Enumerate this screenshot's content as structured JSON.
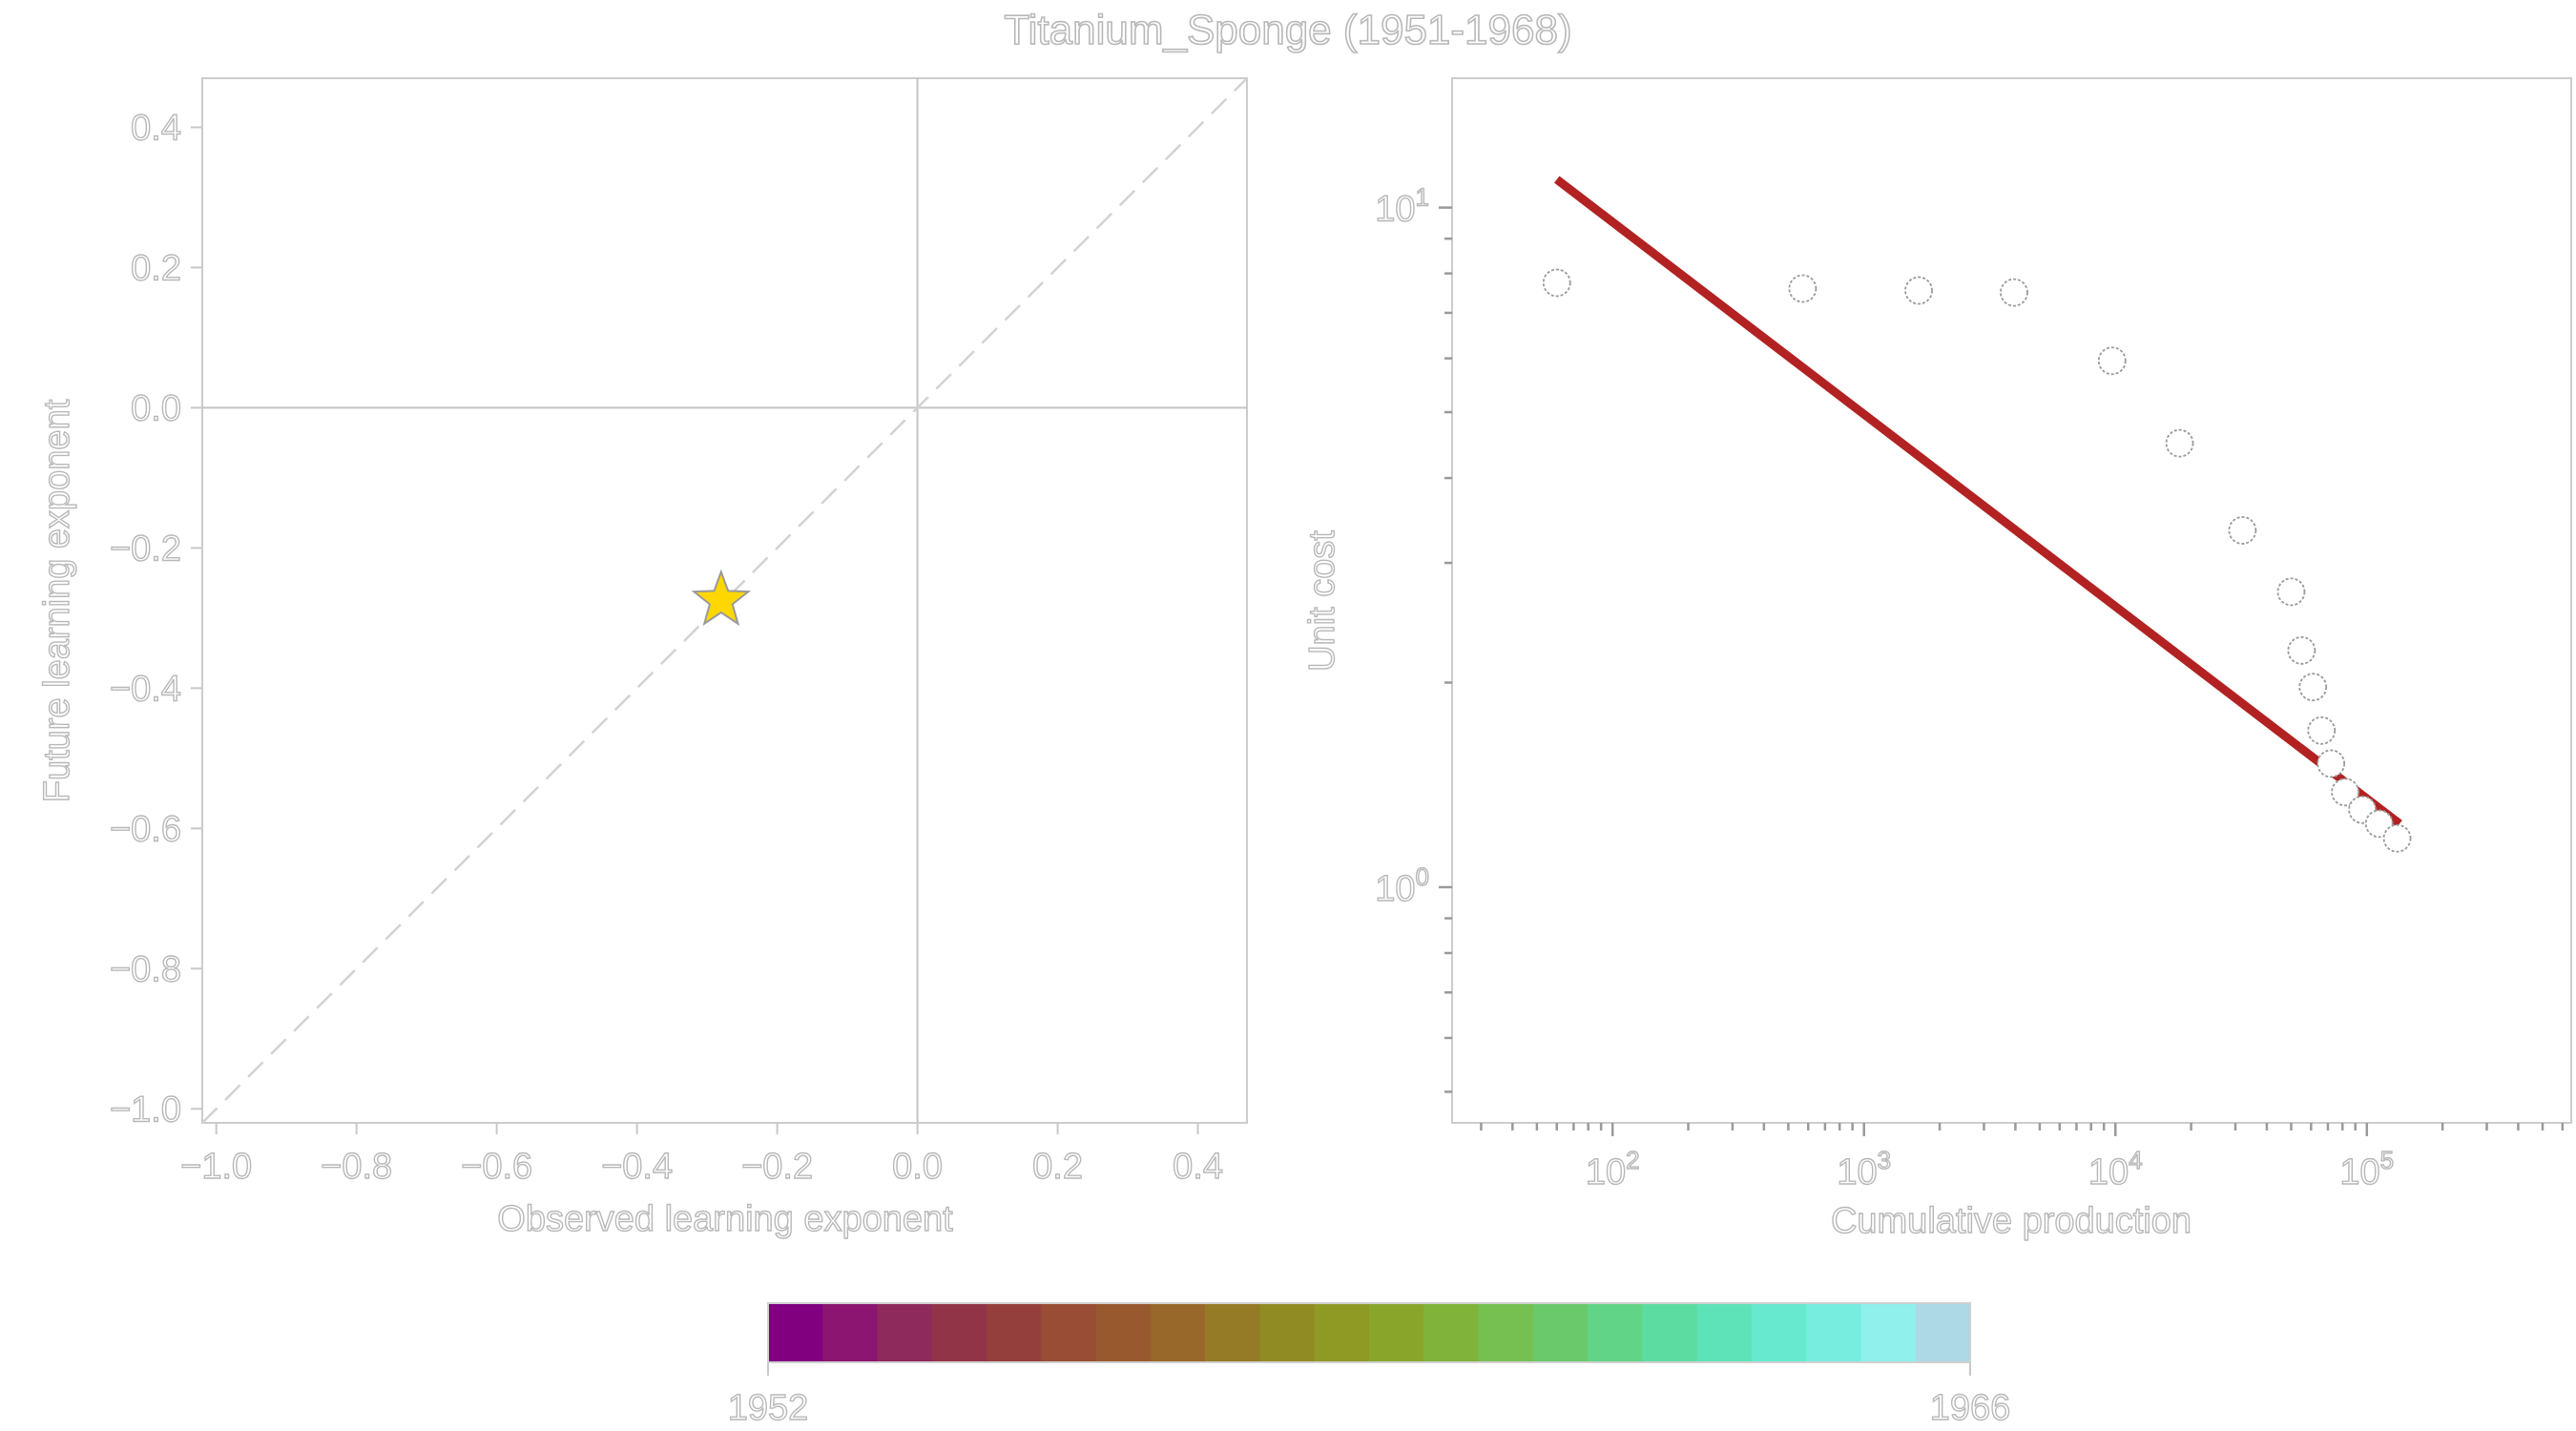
{
  "title": "Titanium_Sponge (1951-1968)",
  "chart_data": [
    {
      "type": "scatter",
      "name": "learning-exponent-comparison",
      "xlabel": "Observed learning exponent",
      "ylabel": "Future learning exponent",
      "xlim": [
        -1.02,
        0.47
      ],
      "ylim": [
        -1.02,
        0.47
      ],
      "x_ticks": [
        -1.0,
        -0.8,
        -0.6,
        -0.4,
        -0.2,
        0.0,
        0.2,
        0.4
      ],
      "x_tick_labels": [
        "−1.0",
        "−0.8",
        "−0.6",
        "−0.4",
        "−0.2",
        "0.0",
        "0.2",
        "0.4"
      ],
      "y_ticks": [
        0.4,
        0.2,
        0.0,
        -0.2,
        -0.4,
        -0.6,
        -0.8,
        -1.0
      ],
      "y_tick_labels": [
        "0.4",
        "0.2",
        "0.0",
        "−0.2",
        "−0.4",
        "−0.6",
        "−0.8",
        "−1.0"
      ],
      "reference_lines": {
        "x0": true,
        "y0": true,
        "diagonal": "dashed"
      },
      "points": [
        {
          "x": -0.28,
          "y": -0.275,
          "marker": "star",
          "color": "#FFD700"
        }
      ],
      "grid": false
    },
    {
      "type": "scatter",
      "name": "unit-cost-vs-cumulative-production",
      "xlabel": "Cumulative production",
      "ylabel": "Unit cost",
      "xscale": "log",
      "yscale": "log",
      "xlim": [
        23,
        650000
      ],
      "ylim": [
        0.45,
        15.5
      ],
      "x_major_ticks": [
        100,
        1000,
        10000,
        100000
      ],
      "x_tick_labels": [
        {
          "base": "10",
          "exp": "2"
        },
        {
          "base": "10",
          "exp": "3"
        },
        {
          "base": "10",
          "exp": "4"
        },
        {
          "base": "10",
          "exp": "5"
        }
      ],
      "y_major_ticks": [
        1,
        10
      ],
      "y_tick_labels": [
        {
          "base": "10",
          "exp": "0"
        },
        {
          "base": "10",
          "exp": "1"
        }
      ],
      "points": [
        {
          "x": 60,
          "y": 7.75
        },
        {
          "x": 570,
          "y": 7.6
        },
        {
          "x": 1650,
          "y": 7.55
        },
        {
          "x": 3950,
          "y": 7.5
        },
        {
          "x": 9700,
          "y": 5.95
        },
        {
          "x": 18000,
          "y": 4.5
        },
        {
          "x": 32000,
          "y": 3.35
        },
        {
          "x": 50000,
          "y": 2.72
        },
        {
          "x": 55000,
          "y": 2.23
        },
        {
          "x": 61000,
          "y": 1.97
        },
        {
          "x": 66000,
          "y": 1.7
        },
        {
          "x": 72000,
          "y": 1.52
        },
        {
          "x": 82000,
          "y": 1.38
        },
        {
          "x": 96000,
          "y": 1.3
        },
        {
          "x": 112000,
          "y": 1.24
        },
        {
          "x": 132000,
          "y": 1.18
        }
      ],
      "fit_line": {
        "x": [
          60,
          135000
        ],
        "y": [
          11.0,
          1.24
        ],
        "color": "#b22222"
      },
      "grid": false
    }
  ],
  "colorbar": {
    "min_label": "1952",
    "max_label": "1966",
    "colors": [
      "#800080",
      "#8b1570",
      "#8f2a5c",
      "#923448",
      "#953f3c",
      "#984d34",
      "#98592e",
      "#976829",
      "#957b26",
      "#918b24",
      "#8f9a25",
      "#89a62b",
      "#80b33a",
      "#75c051",
      "#6ac96b",
      "#62d487",
      "#5ddca1",
      "#5ee3b8",
      "#66e9ce",
      "#77ede0",
      "#8ff0ec",
      "#add8e6"
    ]
  }
}
